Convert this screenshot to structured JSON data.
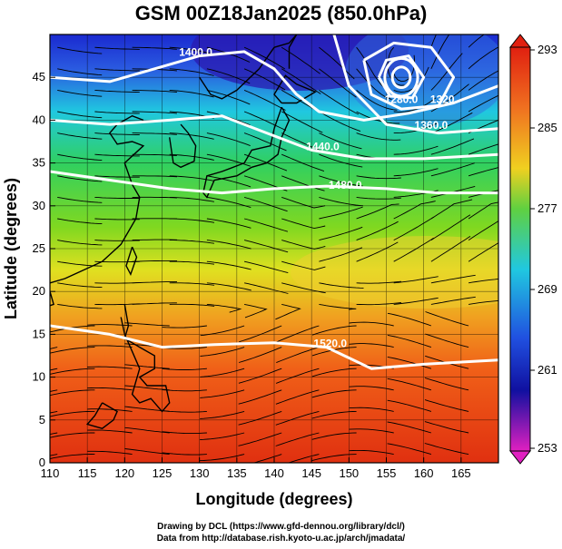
{
  "title": "GSM 00Z18Jan2025 (850.0hPa)",
  "credits": {
    "line1": "Drawing by DCL (https://www.gfd-dennou.org/library/dcl/)",
    "line2": "Data from http://database.rish.kyoto-u.ac.jp/arch/jmadata/"
  },
  "axes": {
    "xlabel": "Longitude (degrees)",
    "ylabel": "Latitude  (degrees)",
    "xlim": [
      110,
      170
    ],
    "ylim": [
      0,
      50
    ],
    "x_ticks": [
      110,
      115,
      120,
      125,
      130,
      135,
      140,
      145,
      150,
      155,
      160,
      165
    ],
    "y_ticks": [
      0,
      5,
      10,
      15,
      20,
      25,
      30,
      35,
      40,
      45
    ]
  },
  "colorbar": {
    "range": [
      253,
      293
    ],
    "tick_labels": [
      "293",
      "285",
      "277",
      "269",
      "261",
      "253"
    ],
    "tick_values": [
      293,
      285,
      277,
      269,
      261,
      253
    ]
  },
  "contours": [
    {
      "label": "1400.0",
      "value": 1400,
      "label_lon": 129.5,
      "label_lat": 47.5
    },
    {
      "label": "1280.0",
      "value": 1280,
      "label_lon": 157,
      "label_lat": 42
    },
    {
      "label": "1320",
      "value": 1320,
      "label_lon": 162.5,
      "label_lat": 42
    },
    {
      "label": "1360.0",
      "value": 1360,
      "label_lon": 161,
      "label_lat": 39
    },
    {
      "label": "1440.0",
      "value": 1440,
      "label_lon": 146.5,
      "label_lat": 36.5
    },
    {
      "label": "1480.0",
      "value": 1480,
      "label_lon": 149.5,
      "label_lat": 32
    },
    {
      "label": "1520.0",
      "value": 1520,
      "label_lon": 147.5,
      "label_lat": 13.5
    }
  ],
  "colors": {
    "warm": "#e03010",
    "cool": "#1020c0",
    "contour": "#ffffff",
    "streamline": "#000000"
  }
}
